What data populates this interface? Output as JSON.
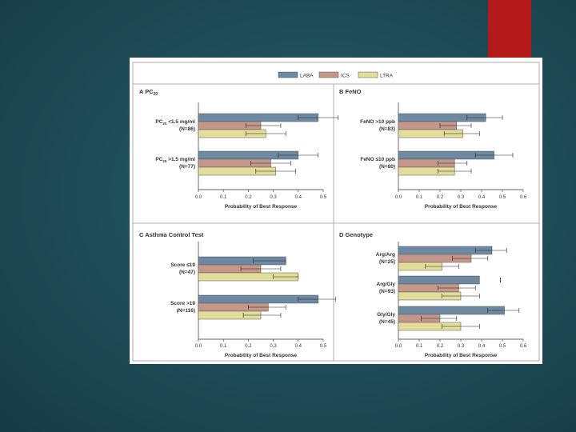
{
  "colors": {
    "laba": "#6d8aa2",
    "ics": "#c4978b",
    "ltra": "#e2dd9b"
  },
  "chart_data": {
    "type": "bar",
    "orientation": "horizontal",
    "legend": {
      "placement": "top-center",
      "entries": [
        {
          "key": "laba",
          "label": "LABA"
        },
        {
          "key": "ics",
          "label": "ICS"
        },
        {
          "key": "ltra",
          "label": "LTRA"
        }
      ]
    },
    "panels": [
      {
        "letter": "A",
        "title": "PC",
        "title_sub": "20",
        "xlabel": "Probability of Best Response",
        "xlim": [
          0,
          0.5
        ],
        "ticks": [
          "0.0",
          "0.1",
          "0.2",
          "0.3",
          "0.4",
          "0.5"
        ],
        "groups": [
          {
            "label_main": "PC",
            "label_sub": "20",
            "label_rest": " <1.5 mg/ml",
            "label2": "(N=86)",
            "bars": [
              {
                "series": "laba",
                "value": 0.48,
                "ci": [
                  0.4,
                  0.56
                ]
              },
              {
                "series": "ics",
                "value": 0.25,
                "ci": [
                  0.19,
                  0.33
                ]
              },
              {
                "series": "ltra",
                "value": 0.27,
                "ci": [
                  0.19,
                  0.35
                ]
              }
            ]
          },
          {
            "label_main": "PC",
            "label_sub": "20",
            "label_rest": " >1.5 mg/ml",
            "label2": "(N=77)",
            "bars": [
              {
                "series": "laba",
                "value": 0.4,
                "ci": [
                  0.32,
                  0.48
                ]
              },
              {
                "series": "ics",
                "value": 0.29,
                "ci": [
                  0.21,
                  0.37
                ]
              },
              {
                "series": "ltra",
                "value": 0.31,
                "ci": [
                  0.23,
                  0.39
                ]
              }
            ]
          }
        ]
      },
      {
        "letter": "B",
        "title": "FeNO",
        "title_sub": "",
        "xlabel": "Probability of Best Response",
        "xlim": [
          0,
          0.6
        ],
        "ticks": [
          "0.0",
          "0.1",
          "0.2",
          "0.3",
          "0.4",
          "0.5",
          "0.6"
        ],
        "groups": [
          {
            "label_main": "FeNO >10 ppb",
            "label_sub": "",
            "label_rest": "",
            "label2": "(N=83)",
            "bars": [
              {
                "series": "laba",
                "value": 0.42,
                "ci": [
                  0.33,
                  0.5
                ]
              },
              {
                "series": "ics",
                "value": 0.28,
                "ci": [
                  0.2,
                  0.35
                ]
              },
              {
                "series": "ltra",
                "value": 0.31,
                "ci": [
                  0.22,
                  0.39
                ]
              }
            ]
          },
          {
            "label_main": "FeNO ≤10 ppb",
            "label_sub": "",
            "label_rest": "",
            "label2": "(N=80)",
            "bars": [
              {
                "series": "laba",
                "value": 0.46,
                "ci": [
                  0.37,
                  0.55
                ]
              },
              {
                "series": "ics",
                "value": 0.27,
                "ci": [
                  0.19,
                  0.33
                ]
              },
              {
                "series": "ltra",
                "value": 0.27,
                "ci": [
                  0.19,
                  0.35
                ]
              }
            ]
          }
        ]
      },
      {
        "letter": "C",
        "title": "Asthma Control Test",
        "title_sub": "",
        "xlabel": "Probability of Best Response",
        "xlim": [
          0,
          0.5
        ],
        "ticks": [
          "0.0",
          "0.1",
          "0.2",
          "0.3",
          "0.4",
          "0.5"
        ],
        "groups": [
          {
            "label_main": "Score ≤19",
            "label_sub": "",
            "label_rest": "",
            "label2": "(N=47)",
            "bars": [
              {
                "series": "laba",
                "value": 0.35,
                "ci": [
                  0.22,
                  0.35
                ]
              },
              {
                "series": "ics",
                "value": 0.25,
                "ci": [
                  0.17,
                  0.33
                ]
              },
              {
                "series": "ltra",
                "value": 0.4,
                "ci": [
                  0.3,
                  0.4
                ]
              }
            ]
          },
          {
            "label_main": "Score >19",
            "label_sub": "",
            "label_rest": "",
            "label2": "(N=116)",
            "bars": [
              {
                "series": "laba",
                "value": 0.48,
                "ci": [
                  0.4,
                  0.55
                ]
              },
              {
                "series": "ics",
                "value": 0.28,
                "ci": [
                  0.2,
                  0.35
                ]
              },
              {
                "series": "ltra",
                "value": 0.25,
                "ci": [
                  0.18,
                  0.33
                ]
              }
            ]
          }
        ]
      },
      {
        "letter": "D",
        "title": "Genotype",
        "title_sub": "",
        "xlabel": "Probability of Best Response",
        "xlim": [
          0,
          0.6
        ],
        "ticks": [
          "0.0",
          "0.1",
          "0.2",
          "0.3",
          "0.4",
          "0.5",
          "0.6"
        ],
        "groups": [
          {
            "label_main": "Arg/Arg",
            "label_sub": "",
            "label_rest": "",
            "label2": "(N=25)",
            "bars": [
              {
                "series": "laba",
                "value": 0.45,
                "ci": [
                  0.37,
                  0.52
                ]
              },
              {
                "series": "ics",
                "value": 0.35,
                "ci": [
                  0.26,
                  0.43
                ]
              },
              {
                "series": "ltra",
                "value": 0.21,
                "ci": [
                  0.13,
                  0.29
                ]
              }
            ]
          },
          {
            "label_main": "Arg/Gly",
            "label_sub": "",
            "label_rest": "",
            "label2": "(N=93)",
            "bars": [
              {
                "series": "laba",
                "value": 0.39,
                "ci": [
                  0.49,
                  0.49
                ]
              },
              {
                "series": "ics",
                "value": 0.29,
                "ci": [
                  0.19,
                  0.37
                ]
              },
              {
                "series": "ltra",
                "value": 0.3,
                "ci": [
                  0.21,
                  0.39
                ]
              }
            ]
          },
          {
            "label_main": "Gly/Gly",
            "label_sub": "",
            "label_rest": "",
            "label2": "(N=45)",
            "bars": [
              {
                "series": "laba",
                "value": 0.51,
                "ci": [
                  0.43,
                  0.58
                ]
              },
              {
                "series": "ics",
                "value": 0.2,
                "ci": [
                  0.11,
                  0.28
                ]
              },
              {
                "series": "ltra",
                "value": 0.3,
                "ci": [
                  0.21,
                  0.39
                ]
              }
            ]
          }
        ]
      }
    ]
  }
}
